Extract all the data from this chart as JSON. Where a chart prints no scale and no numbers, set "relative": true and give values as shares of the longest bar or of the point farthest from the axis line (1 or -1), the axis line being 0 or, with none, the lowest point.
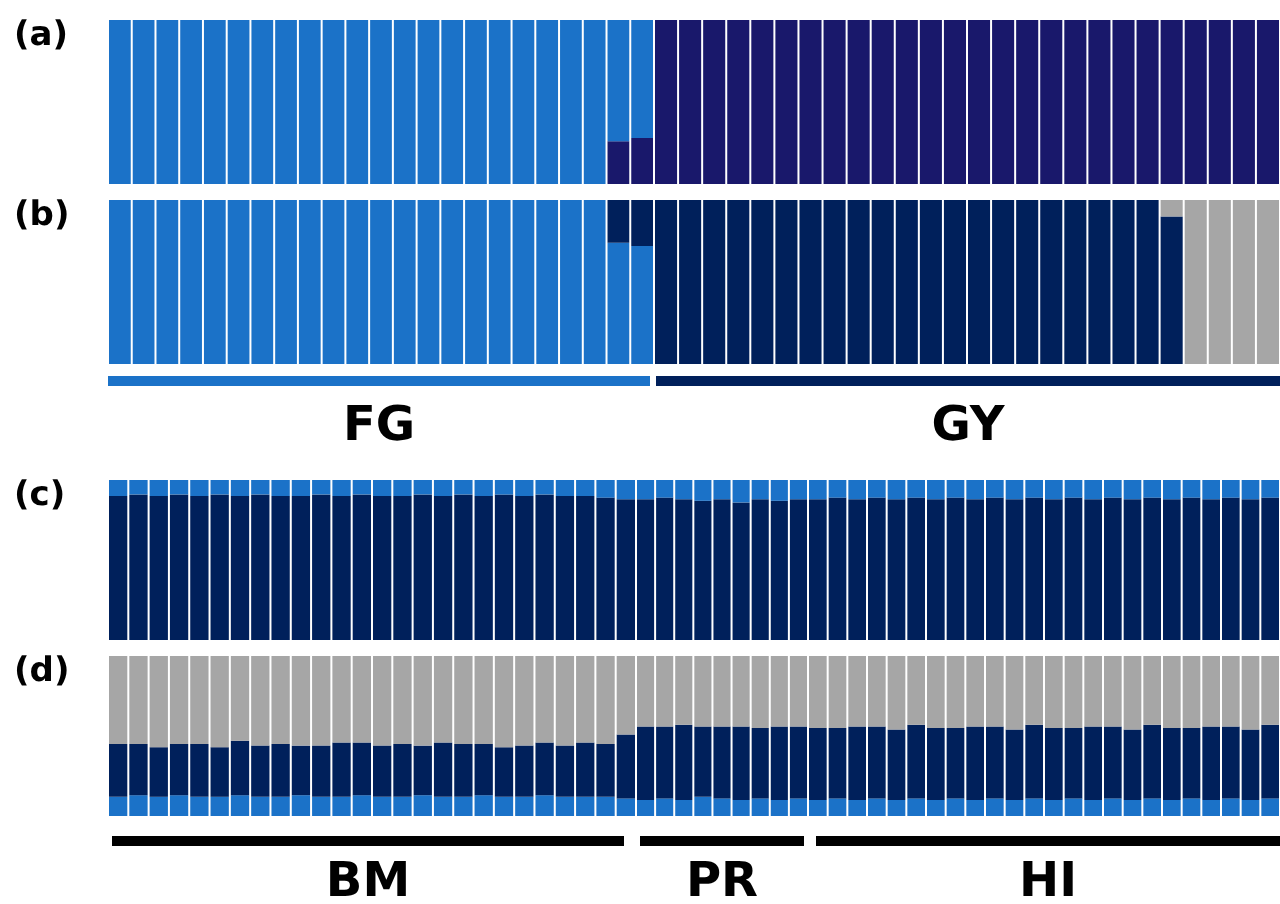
{
  "chart_data": [
    {
      "type": "bar",
      "title": "(a)",
      "stacked": true,
      "relative": true,
      "categories": [
        null,
        null,
        null,
        null,
        null,
        null,
        null,
        null,
        null,
        null,
        null,
        null,
        null,
        null,
        null,
        null,
        null,
        null,
        null,
        null,
        null,
        null,
        null
      ],
      "series": [
        {
          "color": "#19186b",
          "values": [
            0,
            0,
            0,
            0,
            0,
            0,
            0,
            0,
            0,
            0,
            0,
            0,
            0,
            0,
            0,
            0,
            0,
            0,
            0,
            0,
            0,
            0.26,
            0.28
          ]
        },
        {
          "color": "#1b72c8",
          "values": [
            1,
            1,
            1,
            1,
            1,
            1,
            1,
            1,
            1,
            1,
            1,
            1,
            1,
            1,
            1,
            1,
            1,
            1,
            1,
            1,
            1,
            0.74,
            0.72
          ]
        }
      ]
    },
    {
      "type": "bar",
      "stacked": true,
      "relative": true,
      "categories": [
        null,
        null,
        null,
        null,
        null,
        null,
        null,
        null,
        null,
        null,
        null,
        null,
        null,
        null,
        null,
        null,
        null,
        null,
        null,
        null,
        null,
        null,
        null,
        null,
        null,
        null
      ],
      "series": [
        {
          "color": "#19186b",
          "values": [
            1,
            1,
            1,
            1,
            1,
            1,
            1,
            1,
            1,
            1,
            1,
            1,
            1,
            1,
            1,
            1,
            1,
            1,
            1,
            1,
            1,
            1,
            1,
            1,
            1,
            1
          ]
        },
        {
          "color": "#1b72c8",
          "values": [
            0,
            0,
            0,
            0,
            0,
            0,
            0,
            0,
            0,
            0,
            0,
            0,
            0,
            0,
            0,
            0,
            0,
            0,
            0,
            0,
            0,
            0,
            0,
            0,
            0,
            0
          ]
        }
      ]
    },
    {
      "type": "bar",
      "title": "(b)",
      "xlabel": "FG",
      "stacked": true,
      "relative": true,
      "categories": [
        null,
        null,
        null,
        null,
        null,
        null,
        null,
        null,
        null,
        null,
        null,
        null,
        null,
        null,
        null,
        null,
        null,
        null,
        null,
        null,
        null,
        null,
        null
      ],
      "series": [
        {
          "color": "#1b72c8",
          "values": [
            1,
            1,
            1,
            1,
            1,
            1,
            1,
            1,
            1,
            1,
            1,
            1,
            1,
            1,
            1,
            1,
            1,
            1,
            1,
            1,
            1,
            0.74,
            0.72
          ]
        },
        {
          "color": "#00205b",
          "values": [
            0,
            0,
            0,
            0,
            0,
            0,
            0,
            0,
            0,
            0,
            0,
            0,
            0,
            0,
            0,
            0,
            0,
            0,
            0,
            0,
            0,
            0.26,
            0.28
          ]
        },
        {
          "color": "#a6a6a6",
          "values": [
            0,
            0,
            0,
            0,
            0,
            0,
            0,
            0,
            0,
            0,
            0,
            0,
            0,
            0,
            0,
            0,
            0,
            0,
            0,
            0,
            0,
            0,
            0
          ]
        }
      ]
    },
    {
      "type": "bar",
      "xlabel": "GY",
      "stacked": true,
      "relative": true,
      "categories": [
        null,
        null,
        null,
        null,
        null,
        null,
        null,
        null,
        null,
        null,
        null,
        null,
        null,
        null,
        null,
        null,
        null,
        null,
        null,
        null,
        null,
        null,
        null,
        null,
        null,
        null
      ],
      "series": [
        {
          "color": "#1b72c8",
          "values": [
            0,
            0,
            0,
            0,
            0,
            0,
            0,
            0,
            0,
            0,
            0,
            0,
            0,
            0,
            0,
            0,
            0,
            0,
            0,
            0,
            0,
            0,
            0,
            0,
            0,
            0
          ]
        },
        {
          "color": "#00205b",
          "values": [
            1,
            1,
            1,
            1,
            1,
            1,
            1,
            1,
            1,
            1,
            1,
            1,
            1,
            1,
            1,
            1,
            1,
            1,
            1,
            1,
            1,
            0.9,
            0,
            0,
            0,
            0
          ]
        },
        {
          "color": "#a6a6a6",
          "values": [
            0,
            0,
            0,
            0,
            0,
            0,
            0,
            0,
            0,
            0,
            0,
            0,
            0,
            0,
            0,
            0,
            0,
            0,
            0,
            0,
            0,
            0.1,
            1,
            1,
            1,
            1
          ]
        }
      ]
    },
    {
      "type": "bar",
      "title": "(c)",
      "stacked": true,
      "relative": true,
      "categories": [
        null,
        null,
        null,
        null,
        null,
        null,
        null,
        null,
        null,
        null,
        null,
        null,
        null,
        null,
        null,
        null,
        null,
        null,
        null,
        null,
        null,
        null,
        null,
        null,
        null,
        null
      ],
      "series": [
        {
          "color": "#00205b",
          "values": [
            0.9,
            0.91,
            0.9,
            0.91,
            0.9,
            0.91,
            0.9,
            0.91,
            0.9,
            0.9,
            0.91,
            0.9,
            0.91,
            0.9,
            0.9,
            0.91,
            0.9,
            0.91,
            0.9,
            0.91,
            0.9,
            0.91,
            0.9,
            0.9,
            0.89,
            0.88
          ]
        },
        {
          "color": "#1b72c8",
          "values": [
            0.1,
            0.09,
            0.1,
            0.09,
            0.1,
            0.09,
            0.1,
            0.09,
            0.1,
            0.1,
            0.09,
            0.1,
            0.09,
            0.1,
            0.1,
            0.09,
            0.1,
            0.09,
            0.1,
            0.09,
            0.1,
            0.09,
            0.1,
            0.1,
            0.11,
            0.12
          ]
        }
      ]
    },
    {
      "type": "bar",
      "stacked": true,
      "relative": true,
      "categories": [
        null,
        null,
        null,
        null,
        null,
        null,
        null,
        null,
        null
      ],
      "series": [
        {
          "color": "#00205b",
          "values": [
            0.88,
            0.89,
            0.88,
            0.87,
            0.88,
            0.86,
            0.88,
            0.87,
            0.88
          ]
        },
        {
          "color": "#1b72c8",
          "values": [
            0.12,
            0.11,
            0.12,
            0.13,
            0.12,
            0.14,
            0.12,
            0.13,
            0.12
          ]
        }
      ]
    },
    {
      "type": "bar",
      "stacked": true,
      "relative": true,
      "categories": [
        null,
        null,
        null,
        null,
        null,
        null,
        null,
        null,
        null,
        null,
        null,
        null,
        null,
        null,
        null,
        null,
        null,
        null,
        null,
        null,
        null,
        null,
        null,
        null
      ],
      "series": [
        {
          "color": "#00205b",
          "values": [
            0.88,
            0.89,
            0.88,
            0.89,
            0.88,
            0.89,
            0.88,
            0.89,
            0.88,
            0.89,
            0.88,
            0.89,
            0.88,
            0.89,
            0.88,
            0.89,
            0.88,
            0.89,
            0.88,
            0.89,
            0.88,
            0.89,
            0.88,
            0.89
          ]
        },
        {
          "color": "#1b72c8",
          "values": [
            0.12,
            0.11,
            0.12,
            0.11,
            0.12,
            0.11,
            0.12,
            0.11,
            0.12,
            0.11,
            0.12,
            0.11,
            0.12,
            0.11,
            0.12,
            0.11,
            0.12,
            0.11,
            0.12,
            0.11,
            0.12,
            0.11,
            0.12,
            0.11
          ]
        }
      ]
    },
    {
      "type": "bar",
      "title": "(d)",
      "xlabel": "BM",
      "stacked": true,
      "relative": true,
      "categories": [
        null,
        null,
        null,
        null,
        null,
        null,
        null,
        null,
        null,
        null,
        null,
        null,
        null,
        null,
        null,
        null,
        null,
        null,
        null,
        null,
        null,
        null,
        null,
        null,
        null,
        null
      ],
      "series": [
        {
          "color": "#1b72c8",
          "values": [
            0.12,
            0.13,
            0.12,
            0.13,
            0.12,
            0.12,
            0.13,
            0.12,
            0.12,
            0.13,
            0.12,
            0.12,
            0.13,
            0.12,
            0.12,
            0.13,
            0.12,
            0.12,
            0.13,
            0.12,
            0.12,
            0.13,
            0.12,
            0.12,
            0.12,
            0.11
          ]
        },
        {
          "color": "#00205b",
          "values": [
            0.33,
            0.32,
            0.31,
            0.32,
            0.33,
            0.31,
            0.34,
            0.32,
            0.33,
            0.31,
            0.32,
            0.34,
            0.33,
            0.32,
            0.33,
            0.31,
            0.34,
            0.33,
            0.32,
            0.31,
            0.32,
            0.33,
            0.32,
            0.34,
            0.33,
            0.4
          ]
        },
        {
          "color": "#a6a6a6",
          "values": [
            0.55,
            0.55,
            0.57,
            0.55,
            0.55,
            0.57,
            0.53,
            0.56,
            0.55,
            0.56,
            0.56,
            0.54,
            0.54,
            0.56,
            0.55,
            0.56,
            0.54,
            0.55,
            0.55,
            0.57,
            0.56,
            0.54,
            0.56,
            0.54,
            0.55,
            0.49
          ]
        }
      ]
    },
    {
      "type": "bar",
      "xlabel": "PR",
      "stacked": true,
      "relative": true,
      "categories": [
        null,
        null,
        null,
        null,
        null,
        null,
        null,
        null,
        null
      ],
      "series": [
        {
          "color": "#1b72c8",
          "values": [
            0.1,
            0.11,
            0.1,
            0.12,
            0.11,
            0.1,
            0.11,
            0.1,
            0.11
          ]
        },
        {
          "color": "#00205b",
          "values": [
            0.46,
            0.45,
            0.47,
            0.44,
            0.45,
            0.46,
            0.44,
            0.46,
            0.45
          ]
        },
        {
          "color": "#a6a6a6",
          "values": [
            0.44,
            0.44,
            0.43,
            0.44,
            0.44,
            0.44,
            0.45,
            0.44,
            0.44
          ]
        }
      ]
    },
    {
      "type": "bar",
      "xlabel": "HI",
      "stacked": true,
      "relative": true,
      "categories": [
        null,
        null,
        null,
        null,
        null,
        null,
        null,
        null,
        null,
        null,
        null,
        null,
        null,
        null,
        null,
        null,
        null,
        null,
        null,
        null,
        null,
        null,
        null,
        null
      ],
      "series": [
        {
          "color": "#1b72c8",
          "values": [
            0.1,
            0.11,
            0.1,
            0.11,
            0.1,
            0.11,
            0.1,
            0.11,
            0.1,
            0.11,
            0.1,
            0.11,
            0.1,
            0.11,
            0.1,
            0.11,
            0.1,
            0.11,
            0.1,
            0.11,
            0.1,
            0.11,
            0.1,
            0.11
          ]
        },
        {
          "color": "#00205b",
          "values": [
            0.45,
            0.44,
            0.46,
            0.45,
            0.44,
            0.46,
            0.45,
            0.44,
            0.46,
            0.45,
            0.44,
            0.46,
            0.45,
            0.44,
            0.46,
            0.45,
            0.44,
            0.46,
            0.45,
            0.44,
            0.46,
            0.45,
            0.44,
            0.46
          ]
        },
        {
          "color": "#a6a6a6",
          "values": [
            0.45,
            0.45,
            0.44,
            0.44,
            0.46,
            0.43,
            0.45,
            0.45,
            0.44,
            0.44,
            0.46,
            0.43,
            0.45,
            0.45,
            0.44,
            0.44,
            0.46,
            0.43,
            0.45,
            0.45,
            0.44,
            0.44,
            0.46,
            0.43
          ]
        }
      ]
    }
  ]
}
